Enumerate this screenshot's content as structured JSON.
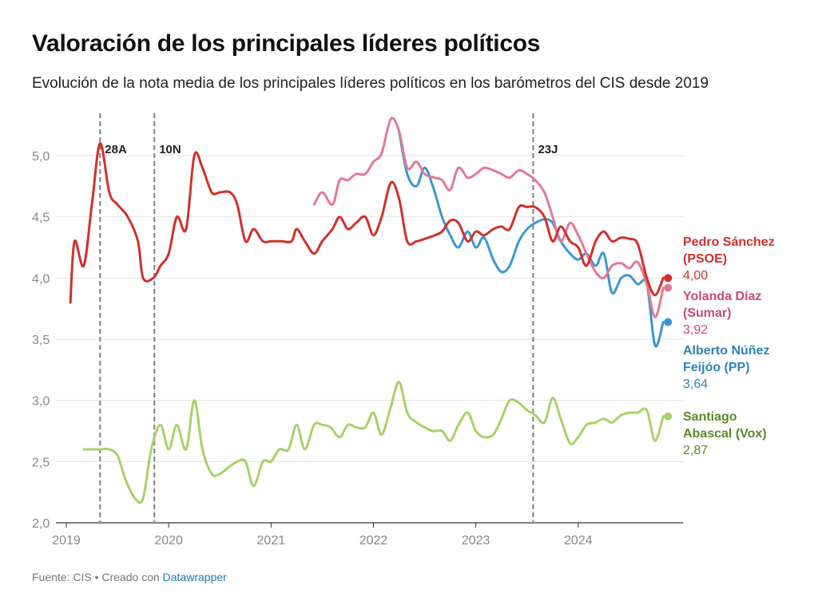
{
  "title": "Valoración de los principales líderes políticos",
  "subtitle": "Evolución de la nota media de los principales líderes políticos en los barómetros del CIS desde 2019",
  "footer": {
    "source": "Fuente: CIS • Creado con ",
    "tool": "Datawrapper"
  },
  "chart_data": {
    "type": "line",
    "title": "Valoración de los principales líderes políticos",
    "xlabel": "",
    "ylabel": "",
    "xlim": [
      2019,
      2025.1
    ],
    "ylim": [
      2.0,
      5.3
    ],
    "y_ticks": [
      2.0,
      2.5,
      3.0,
      3.5,
      4.0,
      4.5,
      5.0
    ],
    "y_tick_labels": [
      "2,0",
      "2,5",
      "3,0",
      "3,5",
      "4,0",
      "4,5",
      "5,0"
    ],
    "x_ticks": [
      2019,
      2020,
      2021,
      2022,
      2023,
      2024
    ],
    "x_tick_labels": [
      "2019",
      "2020",
      "2021",
      "2022",
      "2023",
      "2024"
    ],
    "grid": "horizontal",
    "events": [
      {
        "label": "28A",
        "x": 2019.33
      },
      {
        "label": "10N",
        "x": 2019.86
      },
      {
        "label": "23J",
        "x": 2023.56
      }
    ],
    "series": [
      {
        "name_line1": "Pedro Sánchez",
        "name_line2": "(PSOE)",
        "last_label": "4,00",
        "color": "#d0312d",
        "points": [
          [
            2019.04,
            3.8
          ],
          [
            2019.08,
            4.3
          ],
          [
            2019.17,
            4.1
          ],
          [
            2019.25,
            4.6
          ],
          [
            2019.33,
            5.1
          ],
          [
            2019.42,
            4.7
          ],
          [
            2019.5,
            4.6
          ],
          [
            2019.6,
            4.5
          ],
          [
            2019.7,
            4.3
          ],
          [
            2019.75,
            4.0
          ],
          [
            2019.85,
            4.0
          ],
          [
            2019.92,
            4.1
          ],
          [
            2020.0,
            4.2
          ],
          [
            2020.08,
            4.5
          ],
          [
            2020.17,
            4.4
          ],
          [
            2020.25,
            5.0
          ],
          [
            2020.33,
            4.9
          ],
          [
            2020.42,
            4.7
          ],
          [
            2020.5,
            4.7
          ],
          [
            2020.6,
            4.7
          ],
          [
            2020.67,
            4.6
          ],
          [
            2020.75,
            4.3
          ],
          [
            2020.83,
            4.4
          ],
          [
            2020.92,
            4.3
          ],
          [
            2021.0,
            4.3
          ],
          [
            2021.1,
            4.3
          ],
          [
            2021.2,
            4.3
          ],
          [
            2021.25,
            4.4
          ],
          [
            2021.33,
            4.3
          ],
          [
            2021.42,
            4.2
          ],
          [
            2021.5,
            4.3
          ],
          [
            2021.6,
            4.4
          ],
          [
            2021.67,
            4.5
          ],
          [
            2021.75,
            4.4
          ],
          [
            2021.83,
            4.45
          ],
          [
            2021.92,
            4.5
          ],
          [
            2022.0,
            4.35
          ],
          [
            2022.08,
            4.5
          ],
          [
            2022.17,
            4.78
          ],
          [
            2022.25,
            4.65
          ],
          [
            2022.33,
            4.3
          ],
          [
            2022.42,
            4.3
          ],
          [
            2022.5,
            4.32
          ],
          [
            2022.6,
            4.35
          ],
          [
            2022.67,
            4.38
          ],
          [
            2022.75,
            4.47
          ],
          [
            2022.83,
            4.45
          ],
          [
            2022.92,
            4.3
          ],
          [
            2023.0,
            4.38
          ],
          [
            2023.08,
            4.35
          ],
          [
            2023.17,
            4.4
          ],
          [
            2023.25,
            4.42
          ],
          [
            2023.33,
            4.4
          ],
          [
            2023.42,
            4.58
          ],
          [
            2023.5,
            4.58
          ],
          [
            2023.58,
            4.58
          ],
          [
            2023.67,
            4.5
          ],
          [
            2023.75,
            4.3
          ],
          [
            2023.83,
            4.42
          ],
          [
            2023.92,
            4.3
          ],
          [
            2024.0,
            4.25
          ],
          [
            2024.08,
            4.1
          ],
          [
            2024.17,
            4.3
          ],
          [
            2024.25,
            4.38
          ],
          [
            2024.33,
            4.3
          ],
          [
            2024.42,
            4.33
          ],
          [
            2024.5,
            4.32
          ],
          [
            2024.58,
            4.28
          ],
          [
            2024.67,
            4.0
          ],
          [
            2024.75,
            3.86
          ],
          [
            2024.83,
            4.0
          ]
        ]
      },
      {
        "name_line1": "Yolanda Díaz",
        "name_line2": "(Sumar)",
        "last_label": "3,92",
        "color": "#e07a95",
        "label_color": "#c94c72",
        "points": [
          [
            2021.42,
            4.6
          ],
          [
            2021.5,
            4.7
          ],
          [
            2021.6,
            4.6
          ],
          [
            2021.67,
            4.8
          ],
          [
            2021.75,
            4.8
          ],
          [
            2021.83,
            4.85
          ],
          [
            2021.92,
            4.85
          ],
          [
            2022.0,
            4.95
          ],
          [
            2022.08,
            5.02
          ],
          [
            2022.17,
            5.3
          ],
          [
            2022.25,
            5.2
          ],
          [
            2022.33,
            4.9
          ],
          [
            2022.42,
            4.95
          ],
          [
            2022.5,
            4.85
          ],
          [
            2022.6,
            4.82
          ],
          [
            2022.67,
            4.8
          ],
          [
            2022.75,
            4.72
          ],
          [
            2022.83,
            4.9
          ],
          [
            2022.92,
            4.82
          ],
          [
            2023.0,
            4.85
          ],
          [
            2023.08,
            4.9
          ],
          [
            2023.17,
            4.88
          ],
          [
            2023.25,
            4.85
          ],
          [
            2023.33,
            4.82
          ],
          [
            2023.42,
            4.88
          ],
          [
            2023.5,
            4.85
          ],
          [
            2023.58,
            4.8
          ],
          [
            2023.67,
            4.7
          ],
          [
            2023.75,
            4.5
          ],
          [
            2023.83,
            4.3
          ],
          [
            2023.92,
            4.45
          ],
          [
            2024.0,
            4.35
          ],
          [
            2024.08,
            4.2
          ],
          [
            2024.17,
            4.05
          ],
          [
            2024.25,
            4.0
          ],
          [
            2024.33,
            4.1
          ],
          [
            2024.42,
            4.12
          ],
          [
            2024.5,
            4.08
          ],
          [
            2024.58,
            4.13
          ],
          [
            2024.67,
            3.95
          ],
          [
            2024.75,
            3.68
          ],
          [
            2024.83,
            3.92
          ]
        ]
      },
      {
        "name_line1": "Alberto Núñez",
        "name_line2": "Feijóo (PP)",
        "last_label": "3,64",
        "color": "#3d96d0",
        "label_color": "#2f82bd",
        "points": [
          [
            2022.25,
            5.2
          ],
          [
            2022.33,
            4.85
          ],
          [
            2022.42,
            4.75
          ],
          [
            2022.5,
            4.9
          ],
          [
            2022.58,
            4.75
          ],
          [
            2022.67,
            4.5
          ],
          [
            2022.75,
            4.35
          ],
          [
            2022.83,
            4.25
          ],
          [
            2022.92,
            4.38
          ],
          [
            2023.0,
            4.25
          ],
          [
            2023.08,
            4.33
          ],
          [
            2023.17,
            4.15
          ],
          [
            2023.25,
            4.05
          ],
          [
            2023.33,
            4.1
          ],
          [
            2023.42,
            4.3
          ],
          [
            2023.5,
            4.4
          ],
          [
            2023.58,
            4.45
          ],
          [
            2023.67,
            4.48
          ],
          [
            2023.75,
            4.45
          ],
          [
            2023.83,
            4.3
          ],
          [
            2023.92,
            4.2
          ],
          [
            2024.0,
            4.15
          ],
          [
            2024.08,
            4.2
          ],
          [
            2024.17,
            4.1
          ],
          [
            2024.25,
            4.2
          ],
          [
            2024.33,
            3.88
          ],
          [
            2024.42,
            4.0
          ],
          [
            2024.5,
            4.02
          ],
          [
            2024.58,
            3.95
          ],
          [
            2024.67,
            3.95
          ],
          [
            2024.75,
            3.45
          ],
          [
            2024.83,
            3.64
          ]
        ]
      },
      {
        "name_line1": "Santiago",
        "name_line2": "Abascal (Vox)",
        "last_label": "2,87",
        "color": "#a8d168",
        "label_color": "#5a8a2a",
        "points": [
          [
            2019.17,
            2.6
          ],
          [
            2019.25,
            2.6
          ],
          [
            2019.33,
            2.6
          ],
          [
            2019.42,
            2.6
          ],
          [
            2019.5,
            2.55
          ],
          [
            2019.58,
            2.35
          ],
          [
            2019.67,
            2.2
          ],
          [
            2019.75,
            2.2
          ],
          [
            2019.83,
            2.6
          ],
          [
            2019.92,
            2.8
          ],
          [
            2020.0,
            2.6
          ],
          [
            2020.08,
            2.8
          ],
          [
            2020.17,
            2.6
          ],
          [
            2020.25,
            3.0
          ],
          [
            2020.33,
            2.6
          ],
          [
            2020.42,
            2.4
          ],
          [
            2020.5,
            2.4
          ],
          [
            2020.58,
            2.45
          ],
          [
            2020.67,
            2.5
          ],
          [
            2020.75,
            2.5
          ],
          [
            2020.83,
            2.3
          ],
          [
            2020.92,
            2.5
          ],
          [
            2021.0,
            2.5
          ],
          [
            2021.08,
            2.6
          ],
          [
            2021.17,
            2.6
          ],
          [
            2021.25,
            2.8
          ],
          [
            2021.33,
            2.6
          ],
          [
            2021.42,
            2.8
          ],
          [
            2021.5,
            2.8
          ],
          [
            2021.58,
            2.78
          ],
          [
            2021.67,
            2.7
          ],
          [
            2021.75,
            2.8
          ],
          [
            2021.83,
            2.78
          ],
          [
            2021.92,
            2.78
          ],
          [
            2022.0,
            2.9
          ],
          [
            2022.08,
            2.72
          ],
          [
            2022.17,
            2.95
          ],
          [
            2022.25,
            3.15
          ],
          [
            2022.33,
            2.9
          ],
          [
            2022.42,
            2.82
          ],
          [
            2022.5,
            2.78
          ],
          [
            2022.58,
            2.75
          ],
          [
            2022.67,
            2.75
          ],
          [
            2022.75,
            2.67
          ],
          [
            2022.83,
            2.8
          ],
          [
            2022.92,
            2.9
          ],
          [
            2023.0,
            2.75
          ],
          [
            2023.08,
            2.7
          ],
          [
            2023.17,
            2.72
          ],
          [
            2023.25,
            2.85
          ],
          [
            2023.33,
            3.0
          ],
          [
            2023.42,
            2.98
          ],
          [
            2023.5,
            2.92
          ],
          [
            2023.58,
            2.88
          ],
          [
            2023.67,
            2.82
          ],
          [
            2023.75,
            3.02
          ],
          [
            2023.83,
            2.85
          ],
          [
            2023.92,
            2.65
          ],
          [
            2024.0,
            2.7
          ],
          [
            2024.08,
            2.8
          ],
          [
            2024.17,
            2.82
          ],
          [
            2024.25,
            2.85
          ],
          [
            2024.33,
            2.82
          ],
          [
            2024.42,
            2.88
          ],
          [
            2024.5,
            2.9
          ],
          [
            2024.58,
            2.9
          ],
          [
            2024.67,
            2.92
          ],
          [
            2024.75,
            2.67
          ],
          [
            2024.83,
            2.87
          ]
        ]
      }
    ]
  }
}
